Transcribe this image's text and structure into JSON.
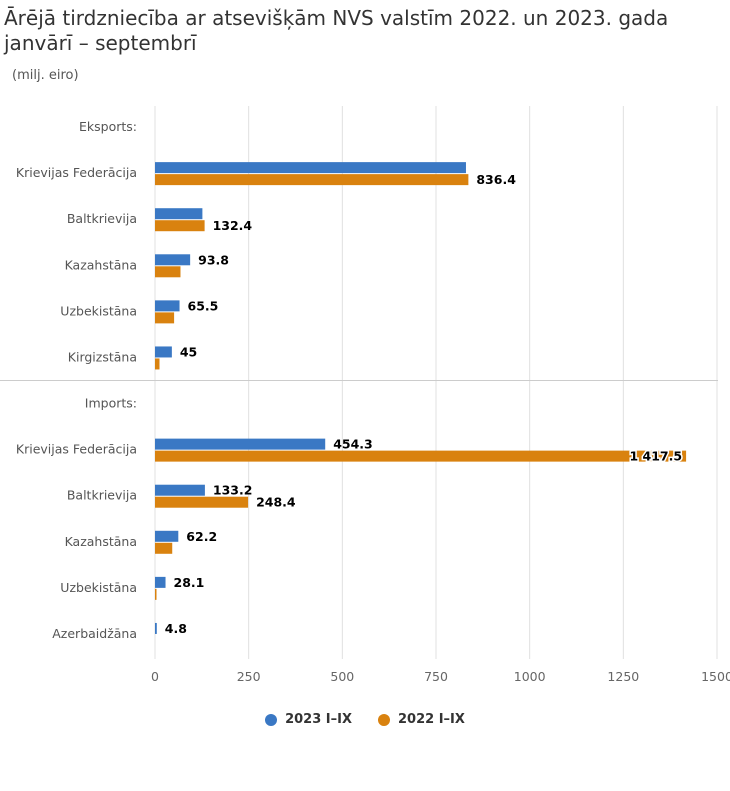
{
  "title": "Ārējā tirdzniecība ar atsevišķām NVS valstīm 2022. un 2023. gada janvārī – septembrī",
  "subtitle": "(milj. eiro)",
  "colors": {
    "series_2023": "#3a78c4",
    "series_2022": "#d9820f",
    "grid": "#e0e0e0",
    "separator": "#cccccc"
  },
  "chart_data": {
    "type": "bar",
    "orientation": "horizontal",
    "title": "Ārējā tirdzniecība ar atsevišķām NVS valstīm 2022. un 2023. gada janvārī – septembrī",
    "subtitle": "(milj. eiro)",
    "categories": [
      "Eksports:",
      "Krievijas Federācija",
      "Baltkrievija",
      "Kazahstāna",
      "Uzbekistāna",
      "Kirgizstāna",
      "Imports:",
      "Krievijas Federācija",
      "Baltkrievija",
      "Kazahstāna",
      "Uzbekistāna",
      "Azerbaidžāna"
    ],
    "series": [
      {
        "name": "2023 I–IX",
        "values": [
          null,
          830,
          126.5,
          93.8,
          65.5,
          45,
          null,
          454.3,
          133.2,
          62.2,
          28.1,
          4.8
        ],
        "labels": [
          "",
          "",
          "",
          "93.8",
          "65.5",
          "45",
          "",
          "454.3",
          "133.2",
          "62.2",
          "28.1",
          "4.8"
        ]
      },
      {
        "name": "2022 I–IX",
        "values": [
          null,
          836.4,
          132.4,
          68,
          51,
          12,
          null,
          1417.5,
          248.4,
          46,
          4,
          0
        ],
        "labels": [
          "",
          "836.4",
          "132.4",
          "",
          "",
          "",
          "",
          "1 417.5",
          "248.4",
          "",
          "",
          ""
        ]
      }
    ],
    "xlim": [
      0,
      1500
    ],
    "xticks": [
      "0",
      "250",
      "500",
      "750",
      "1000",
      "1250",
      "1500"
    ],
    "grid": true,
    "legend_position": "bottom"
  }
}
